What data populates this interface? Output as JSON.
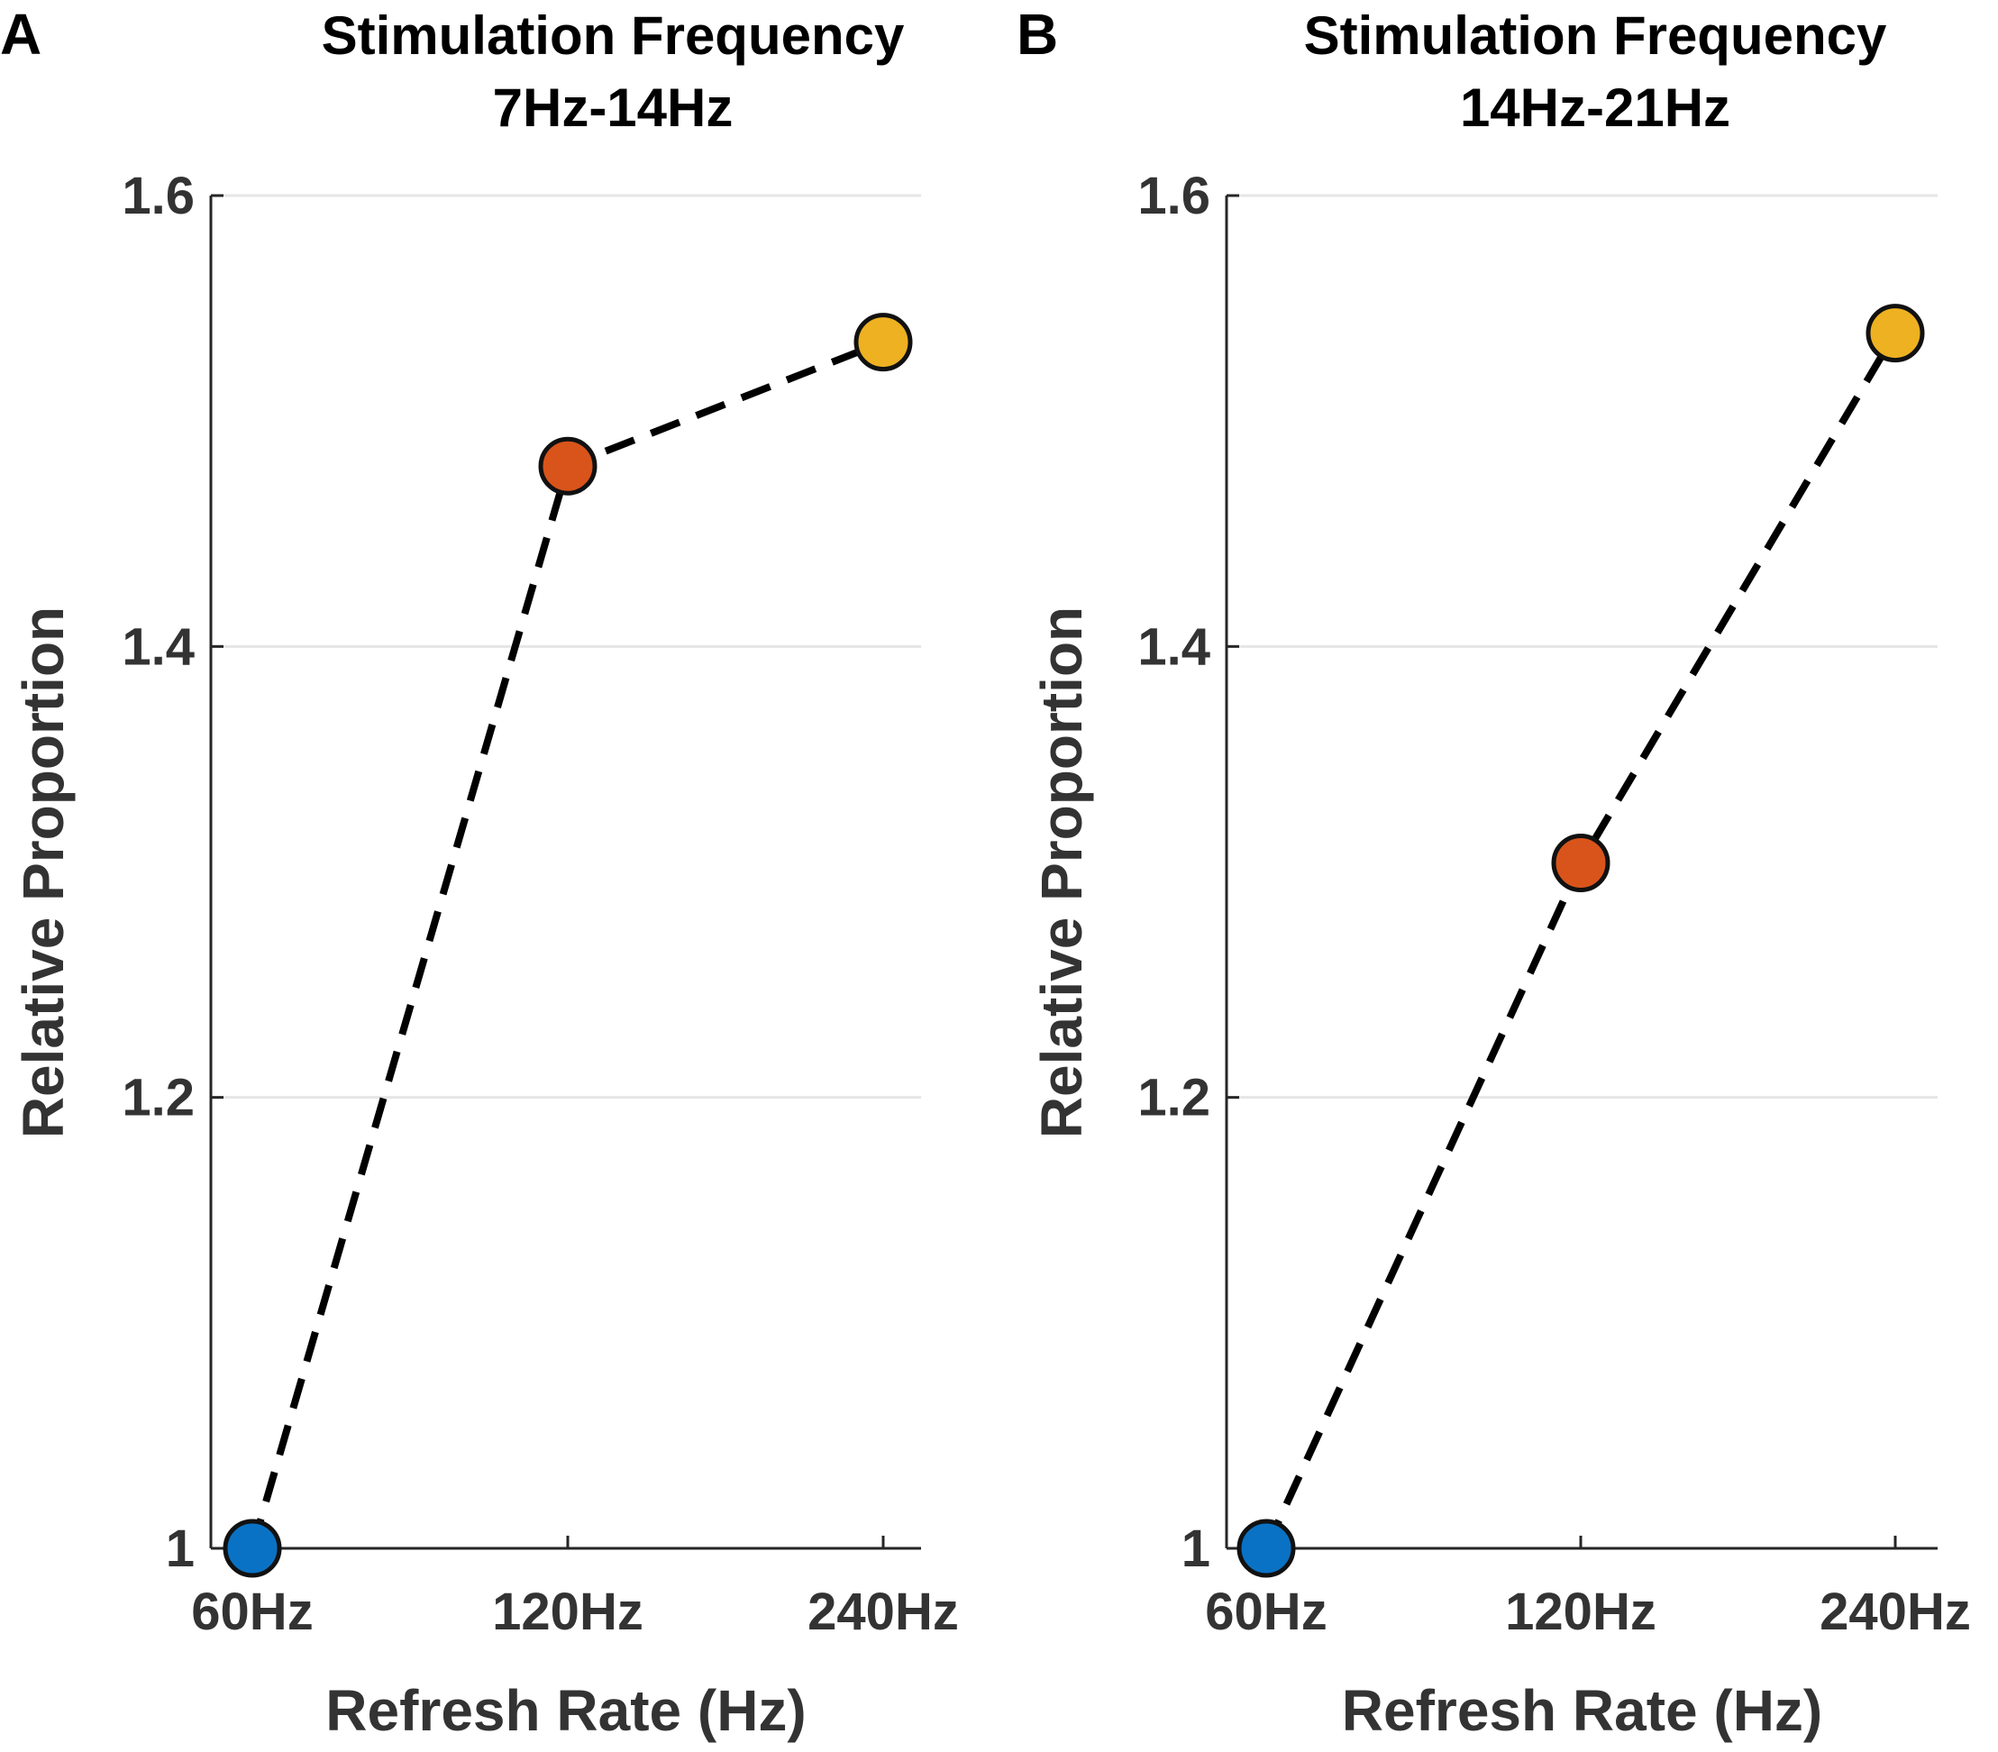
{
  "chart_data": [
    {
      "panel": "A",
      "type": "line",
      "title": [
        "Stimulation Frequency",
        "7Hz-14Hz"
      ],
      "xlabel": "Refresh Rate (Hz)",
      "ylabel": "Relative Proportion",
      "categories": [
        "60Hz",
        "120Hz",
        "240Hz"
      ],
      "x": [
        60,
        120,
        240
      ],
      "values": [
        1.0,
        1.48,
        1.535
      ],
      "point_colors": [
        "#0a72c4",
        "#d9541b",
        "#edb121"
      ],
      "line_style": "dashed",
      "line_color": "#000000",
      "ylim": [
        1,
        1.6
      ],
      "yticks": [
        1,
        1.2,
        1.4,
        1.6
      ],
      "ytick_labels": [
        "1",
        "1.2",
        "1.4",
        "1.6"
      ],
      "grid": "horizontal"
    },
    {
      "panel": "B",
      "type": "line",
      "title": [
        "Stimulation Frequency",
        "14Hz-21Hz"
      ],
      "xlabel": "Refresh Rate (Hz)",
      "ylabel": "Relative Proportion",
      "categories": [
        "60Hz",
        "120Hz",
        "240Hz"
      ],
      "x": [
        60,
        120,
        240
      ],
      "values": [
        1.0,
        1.304,
        1.539
      ],
      "point_colors": [
        "#0a72c4",
        "#d9541b",
        "#edb121"
      ],
      "line_style": "dashed",
      "line_color": "#000000",
      "ylim": [
        1,
        1.6
      ],
      "yticks": [
        1,
        1.2,
        1.4,
        1.6
      ],
      "ytick_labels": [
        "1",
        "1.2",
        "1.4",
        "1.6"
      ],
      "grid": "horizontal"
    }
  ]
}
